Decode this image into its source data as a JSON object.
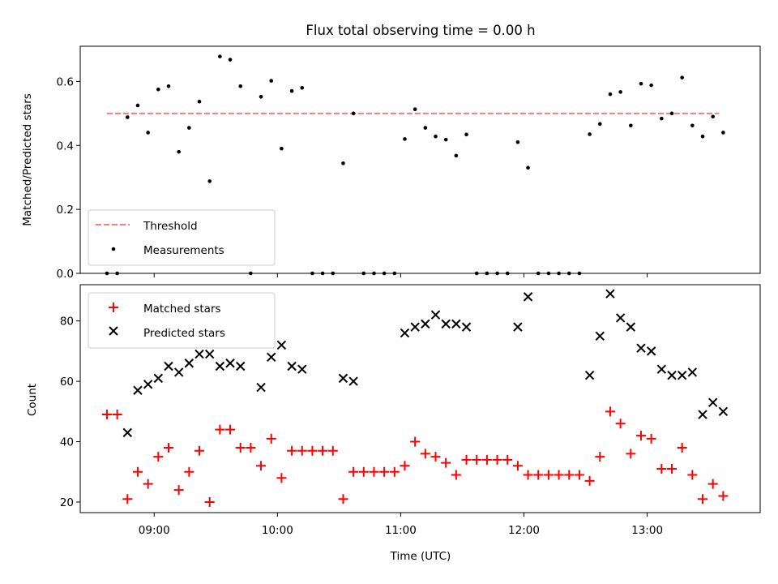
{
  "chart_data": [
    {
      "type": "scatter",
      "title": "Flux total observing time = 0.00 h",
      "xlabel": "",
      "ylabel": "Matched/Predicted stars",
      "xlim": [
        "08:24",
        "13:55"
      ],
      "ylim": [
        0,
        0.71
      ],
      "yticks": [
        0.0,
        0.2,
        0.4,
        0.6
      ],
      "yticklabels": [
        "0.0",
        "0.2",
        "0.4",
        "0.6"
      ],
      "grid": false,
      "legend_position": "lower-left",
      "threshold": {
        "name": "Threshold",
        "value": 0.5,
        "x_range": [
          "08:37",
          "13:35"
        ],
        "color": "#f08080"
      },
      "series": [
        {
          "name": "Measurements",
          "color": "#000000",
          "marker": "dot",
          "x": [
            "08:37",
            "08:42",
            "08:47",
            "08:52",
            "08:57",
            "09:02",
            "09:07",
            "09:12",
            "09:17",
            "09:22",
            "09:27",
            "09:32",
            "09:37",
            "09:42",
            "09:47",
            "09:52",
            "09:57",
            "10:02",
            "10:07",
            "10:12",
            "10:17",
            "10:22",
            "10:27",
            "10:32",
            "10:37",
            "10:42",
            "10:47",
            "10:52",
            "10:57",
            "11:02",
            "11:07",
            "11:12",
            "11:17",
            "11:22",
            "11:27",
            "11:32",
            "11:37",
            "11:42",
            "11:47",
            "11:52",
            "11:57",
            "12:02",
            "12:07",
            "12:12",
            "12:17",
            "12:22",
            "12:27",
            "12:32",
            "12:37",
            "12:42",
            "12:47",
            "12:52",
            "12:57",
            "13:02",
            "13:07",
            "13:12",
            "13:17",
            "13:22",
            "13:27",
            "13:32",
            "13:37"
          ],
          "y": [
            0.0,
            0.0,
            0.488,
            0.525,
            0.44,
            0.575,
            0.585,
            0.38,
            0.455,
            0.537,
            0.288,
            0.678,
            0.668,
            0.585,
            0.0,
            0.552,
            0.602,
            0.39,
            0.57,
            0.58,
            0.0,
            0.0,
            0.0,
            0.344,
            0.5,
            0.0,
            0.0,
            0.0,
            0.0,
            0.42,
            0.513,
            0.455,
            0.428,
            0.418,
            0.368,
            0.434,
            0.0,
            0.0,
            0.0,
            0.0,
            0.41,
            0.33,
            0.0,
            0.0,
            0.0,
            0.0,
            0.0,
            0.435,
            0.467,
            0.56,
            0.567,
            0.462,
            0.593,
            0.588,
            0.484,
            0.5,
            0.612,
            0.462,
            0.428,
            0.49,
            0.44
          ]
        }
      ]
    },
    {
      "type": "scatter",
      "title": "",
      "xlabel": "Time (UTC)",
      "ylabel": "Count",
      "xlim": [
        "08:24",
        "13:55"
      ],
      "ylim": [
        16.5,
        92
      ],
      "yticks": [
        20,
        40,
        60,
        80
      ],
      "yticklabels": [
        "20",
        "40",
        "60",
        "80"
      ],
      "xticks": [
        "09:00",
        "10:00",
        "11:00",
        "12:00",
        "13:00"
      ],
      "xticklabels": [
        "09:00",
        "10:00",
        "11:00",
        "12:00",
        "13:00"
      ],
      "grid": false,
      "legend_position": "top-left",
      "series": [
        {
          "name": "Matched stars",
          "color": "#ff0000",
          "marker": "plus",
          "x": [
            "08:37",
            "08:42",
            "08:47",
            "08:52",
            "08:57",
            "09:02",
            "09:07",
            "09:12",
            "09:17",
            "09:22",
            "09:27",
            "09:32",
            "09:37",
            "09:42",
            "09:47",
            "09:52",
            "09:57",
            "10:02",
            "10:07",
            "10:12",
            "10:17",
            "10:22",
            "10:27",
            "10:32",
            "10:37",
            "10:42",
            "10:47",
            "10:52",
            "10:57",
            "11:02",
            "11:07",
            "11:12",
            "11:17",
            "11:22",
            "11:27",
            "11:32",
            "11:37",
            "11:42",
            "11:47",
            "11:52",
            "11:57",
            "12:02",
            "12:07",
            "12:12",
            "12:17",
            "12:22",
            "12:27",
            "12:32",
            "12:37",
            "12:42",
            "12:47",
            "12:52",
            "12:57",
            "13:02",
            "13:07",
            "13:12",
            "13:17",
            "13:22",
            "13:27",
            "13:32",
            "13:37"
          ],
          "y": [
            49,
            49,
            21,
            30,
            26,
            35,
            38,
            24,
            30,
            37,
            20,
            44,
            44,
            38,
            38,
            32,
            41,
            28,
            37,
            37,
            37,
            37,
            37,
            21,
            30,
            30,
            30,
            30,
            30,
            32,
            40,
            36,
            35,
            33,
            29,
            34,
            34,
            34,
            34,
            34,
            32,
            29,
            29,
            29,
            29,
            29,
            29,
            27,
            35,
            50,
            46,
            36,
            42,
            41,
            31,
            31,
            38,
            29,
            21,
            26,
            22
          ]
        },
        {
          "name": "Predicted stars",
          "color": "#000000",
          "marker": "x",
          "x": [
            "08:47",
            "08:52",
            "08:57",
            "09:02",
            "09:07",
            "09:12",
            "09:17",
            "09:22",
            "09:27",
            "09:32",
            "09:37",
            "09:42",
            "09:52",
            "09:57",
            "10:02",
            "10:07",
            "10:12",
            "10:32",
            "10:37",
            "11:02",
            "11:07",
            "11:12",
            "11:17",
            "11:22",
            "11:27",
            "11:32",
            "11:57",
            "12:02",
            "12:32",
            "12:37",
            "12:42",
            "12:47",
            "12:52",
            "12:57",
            "13:02",
            "13:07",
            "13:12",
            "13:17",
            "13:22",
            "13:27",
            "13:32",
            "13:37"
          ],
          "y": [
            43,
            57,
            59,
            61,
            65,
            63,
            66,
            69,
            69,
            65,
            66,
            65,
            58,
            68,
            72,
            65,
            64,
            61,
            60,
            76,
            78,
            79,
            82,
            79,
            79,
            78,
            78,
            88,
            62,
            75,
            89,
            81,
            78,
            71,
            70,
            64,
            62,
            62,
            63,
            49,
            53,
            50
          ]
        }
      ]
    }
  ]
}
